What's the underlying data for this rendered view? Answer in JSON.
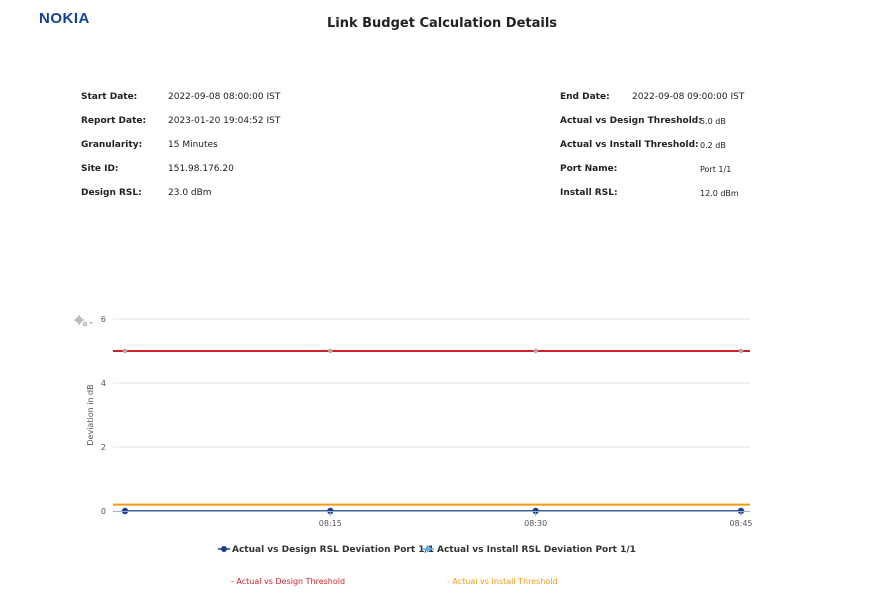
{
  "header": {
    "logo_text": "NOKIA",
    "title": "Link Budget Calculation Details"
  },
  "meta_left": [
    {
      "label": "Start Date:",
      "value": "2022-09-08 08:00:00 IST"
    },
    {
      "label": "Report Date:",
      "value": "2023-01-20 19:04:52 IST"
    },
    {
      "label": "Granularity:",
      "value": "15 Minutes"
    },
    {
      "label": "Site ID:",
      "value": "151.98.176.20"
    },
    {
      "label": "Design RSL:",
      "value": "23.0 dBm"
    }
  ],
  "meta_right": [
    {
      "label": "End Date:",
      "value": "2022-09-08 09:00:00 IST"
    },
    {
      "label": "Actual vs Design Threshold:",
      "value": "5.0 dB"
    },
    {
      "label": "Actual vs Install Threshold:",
      "value": "0.2 dB"
    },
    {
      "label": "Port Name:",
      "value": "Port 1/1"
    },
    {
      "label": "Install RSL:",
      "value": "12.0 dBm"
    }
  ],
  "chart_settings_icon": "gear-icon",
  "chart_data": {
    "type": "line",
    "ylabel": "Deviation in dB",
    "ylim": [
      0,
      6
    ],
    "yticks": [
      0,
      2,
      4,
      6
    ],
    "xlim": [
      "08:00",
      "09:00"
    ],
    "xticks": [
      "08:15",
      "08:30",
      "08:45"
    ],
    "x": [
      "08:00",
      "08:15",
      "08:30",
      "08:45"
    ],
    "series": [
      {
        "name": "Actual vs Design RSL Deviation Port 1/1",
        "color": "#1f3d8f",
        "marker": "circle",
        "values": [
          0,
          0,
          0,
          0
        ]
      },
      {
        "name": "Actual vs Install RSL Deviation Port 1/1",
        "color": "#5bb5e8",
        "marker": "diamond",
        "values": [
          0,
          0,
          0,
          0
        ]
      }
    ],
    "thresholds": [
      {
        "name": "- Actual vs Design Threshold",
        "value": 5.0,
        "color": "#d0202a"
      },
      {
        "name": "- Actual vs Install Threshold",
        "value": 0.2,
        "color": "#f39a12"
      }
    ],
    "grid": true,
    "legend": "bottom"
  }
}
